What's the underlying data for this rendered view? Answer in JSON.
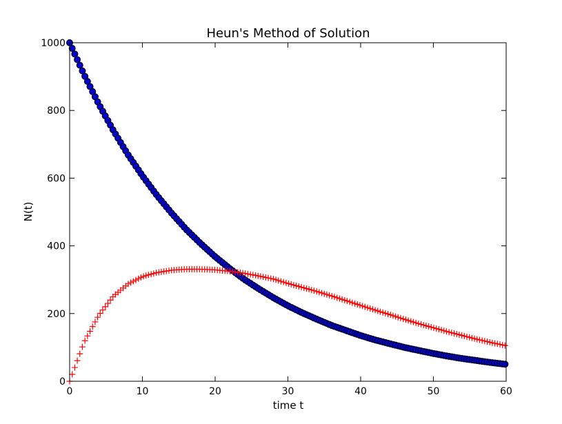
{
  "chart_data": {
    "type": "scatter",
    "title": "Heun's Method of Solution",
    "xlabel": "time t",
    "ylabel": "N(t)",
    "xlim": [
      0,
      60
    ],
    "ylim": [
      0,
      1000
    ],
    "xticks": [
      "0",
      "10",
      "20",
      "30",
      "40",
      "50",
      "60"
    ],
    "yticks": [
      "0",
      "200",
      "400",
      "600",
      "800",
      "1000"
    ],
    "grid": false,
    "legend": "none",
    "x": [
      0,
      2,
      4,
      6,
      8,
      10,
      12,
      14,
      16,
      18,
      20,
      22,
      24,
      26,
      28,
      30,
      32,
      34,
      36,
      38,
      40,
      42,
      44,
      46,
      48,
      50,
      52,
      54,
      56,
      58,
      60
    ],
    "series": [
      {
        "marker": "circle",
        "color": "#0000cc",
        "values": [
          1000,
          905,
          819,
          741,
          670,
          607,
          549,
          497,
          449,
          407,
          368,
          333,
          301,
          273,
          247,
          223,
          202,
          183,
          165,
          150,
          135,
          122,
          111,
          100,
          91,
          82,
          74,
          67,
          61,
          55,
          50
        ]
      },
      {
        "marker": "plus",
        "color": "#ff0000",
        "values": [
          0,
          116,
          195,
          251,
          287,
          309,
          321,
          328,
          331,
          331,
          329,
          325,
          319,
          311,
          302,
          289,
          277,
          265,
          252,
          238,
          224,
          210,
          197,
          183,
          170,
          158,
          146,
          135,
          124,
          114,
          105
        ]
      }
    ]
  }
}
